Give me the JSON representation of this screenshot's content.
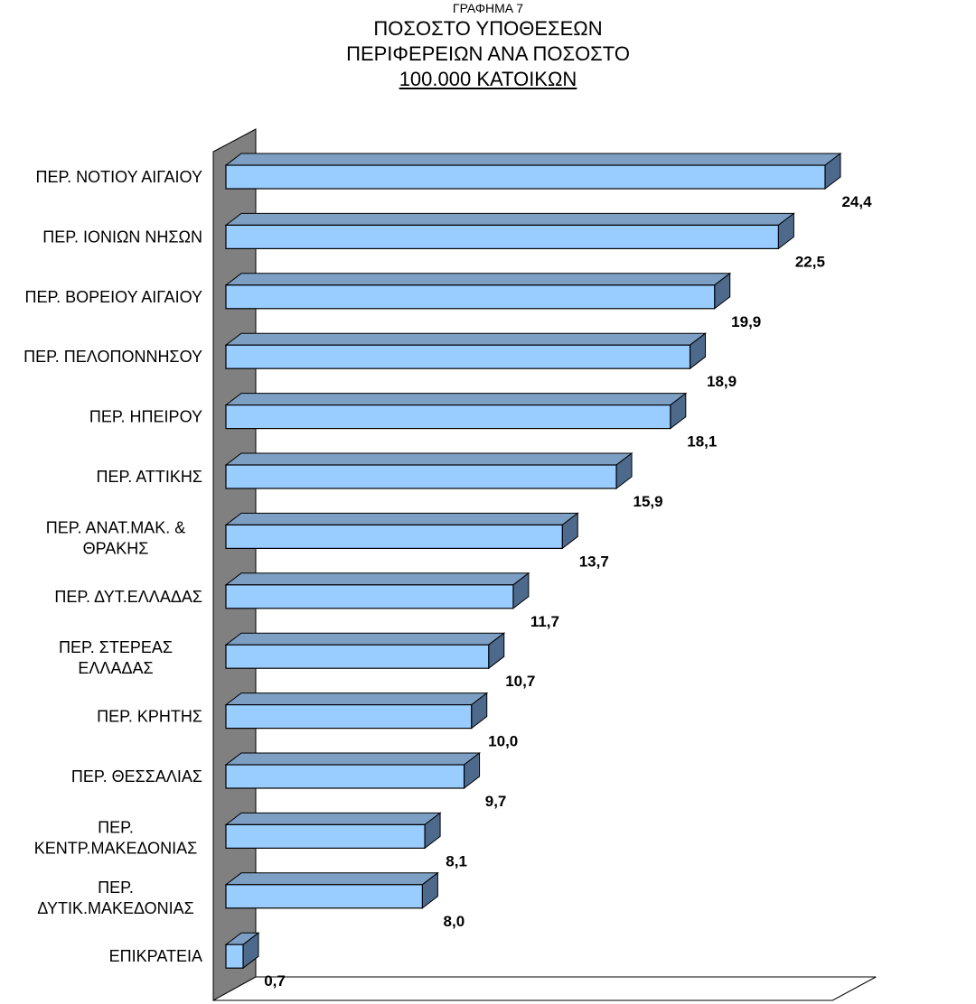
{
  "header": {
    "line0": "ΓΡΑΦΗΜΑ 7",
    "line1": "ΠΟΣΟΣΤΟ ΥΠΟΘΕΣΕΩΝ",
    "line2": "ΠΕΡΙΦΕΡΕΙΩΝ ΑΝΑ ΠΟΣΟΣΤΟ",
    "line3": "100.000 ΚΑΤΟΙΚΩΝ"
  },
  "chart_data": {
    "type": "bar",
    "orientation": "horizontal",
    "style": "3d",
    "title": "ΓΡΑΦΗΜΑ 7 ΠΟΣΟΣΤΟ ΥΠΟΘΕΣΕΩΝ ΠΕΡΙΦΕΡΕΙΩΝ ΑΝΑ ΠΟΣΟΣΤΟ 100.000 ΚΑΤΟΙΚΩΝ",
    "categories": [
      "ΠΕΡ. ΝΟΤΙΟΥ ΑΙΓΑΙΟΥ",
      "ΠΕΡ. ΙΟΝΙΩΝ ΝΗΣΩΝ",
      "ΠΕΡ. ΒΟΡΕΙΟΥ ΑΙΓΑΙΟΥ",
      "ΠΕΡ. ΠΕΛΟΠΟΝΝΗΣΟΥ",
      "ΠΕΡ. ΗΠΕΙΡΟΥ",
      "ΠΕΡ. ΑΤΤΙΚΗΣ",
      "ΠΕΡ. ΑΝΑΤ.ΜΑΚ. & ΘΡΑΚΗΣ",
      "ΠΕΡ. ΔΥΤ.ΕΛΛΑΔΑΣ",
      "ΠΕΡ. ΣΤΕΡΕΑΣ ΕΛΛΑΔΑΣ",
      "ΠΕΡ. ΚΡΗΤΗΣ",
      "ΠΕΡ. ΘΕΣΣΑΛΙΑΣ",
      "ΠΕΡ. ΚΕΝΤΡ.ΜΑΚΕΔΟΝΙΑΣ",
      "ΠΕΡ. ΔΥΤΙΚ.ΜΑΚΕΔΟΝΙΑΣ",
      "ΕΠΙΚΡΑΤΕΙΑ"
    ],
    "category_lines": [
      [
        "ΠΕΡ. ΝΟΤΙΟΥ ΑΙΓΑΙΟΥ"
      ],
      [
        "ΠΕΡ. ΙΟΝΙΩΝ ΝΗΣΩΝ"
      ],
      [
        "ΠΕΡ. ΒΟΡΕΙΟΥ ΑΙΓΑΙΟΥ"
      ],
      [
        "ΠΕΡ. ΠΕΛΟΠΟΝΝΗΣΟΥ"
      ],
      [
        "ΠΕΡ. ΗΠΕΙΡΟΥ"
      ],
      [
        "ΠΕΡ. ΑΤΤΙΚΗΣ"
      ],
      [
        "ΠΕΡ. ΑΝΑΤ.ΜΑΚ. &",
        "ΘΡΑΚΗΣ"
      ],
      [
        "ΠΕΡ. ΔΥΤ.ΕΛΛΑΔΑΣ"
      ],
      [
        "ΠΕΡ. ΣΤΕΡΕΑΣ",
        "ΕΛΛΑΔΑΣ"
      ],
      [
        "ΠΕΡ. ΚΡΗΤΗΣ"
      ],
      [
        "ΠΕΡ. ΘΕΣΣΑΛΙΑΣ"
      ],
      [
        "ΠΕΡ.",
        "ΚΕΝΤΡ.ΜΑΚΕΔΟΝΙΑΣ"
      ],
      [
        "ΠΕΡ.",
        "ΔΥΤΙΚ.ΜΑΚΕΔΟΝΙΑΣ"
      ],
      [
        "ΕΠΙΚΡΑΤΕΙΑ"
      ]
    ],
    "values": [
      24.4,
      22.5,
      19.9,
      18.9,
      18.1,
      15.9,
      13.7,
      11.7,
      10.7,
      10.0,
      9.7,
      8.1,
      8.0,
      0.7
    ],
    "value_labels": [
      "24,4",
      "22,5",
      "19,9",
      "18,9",
      "18,1",
      "15,9",
      "13,7",
      "11,7",
      "10,7",
      "10,0",
      "9,7",
      "8,1",
      "8,0",
      "0,7"
    ],
    "xlim": [
      0,
      25
    ],
    "grid": false,
    "legend": "none",
    "colors": {
      "bar_front": "#99ccff",
      "bar_top": "#7d9fc4",
      "bar_side": "#4d6a8c",
      "bar_edge": "#000000",
      "wall": "#808080",
      "floor": "#c0c0c0"
    }
  }
}
